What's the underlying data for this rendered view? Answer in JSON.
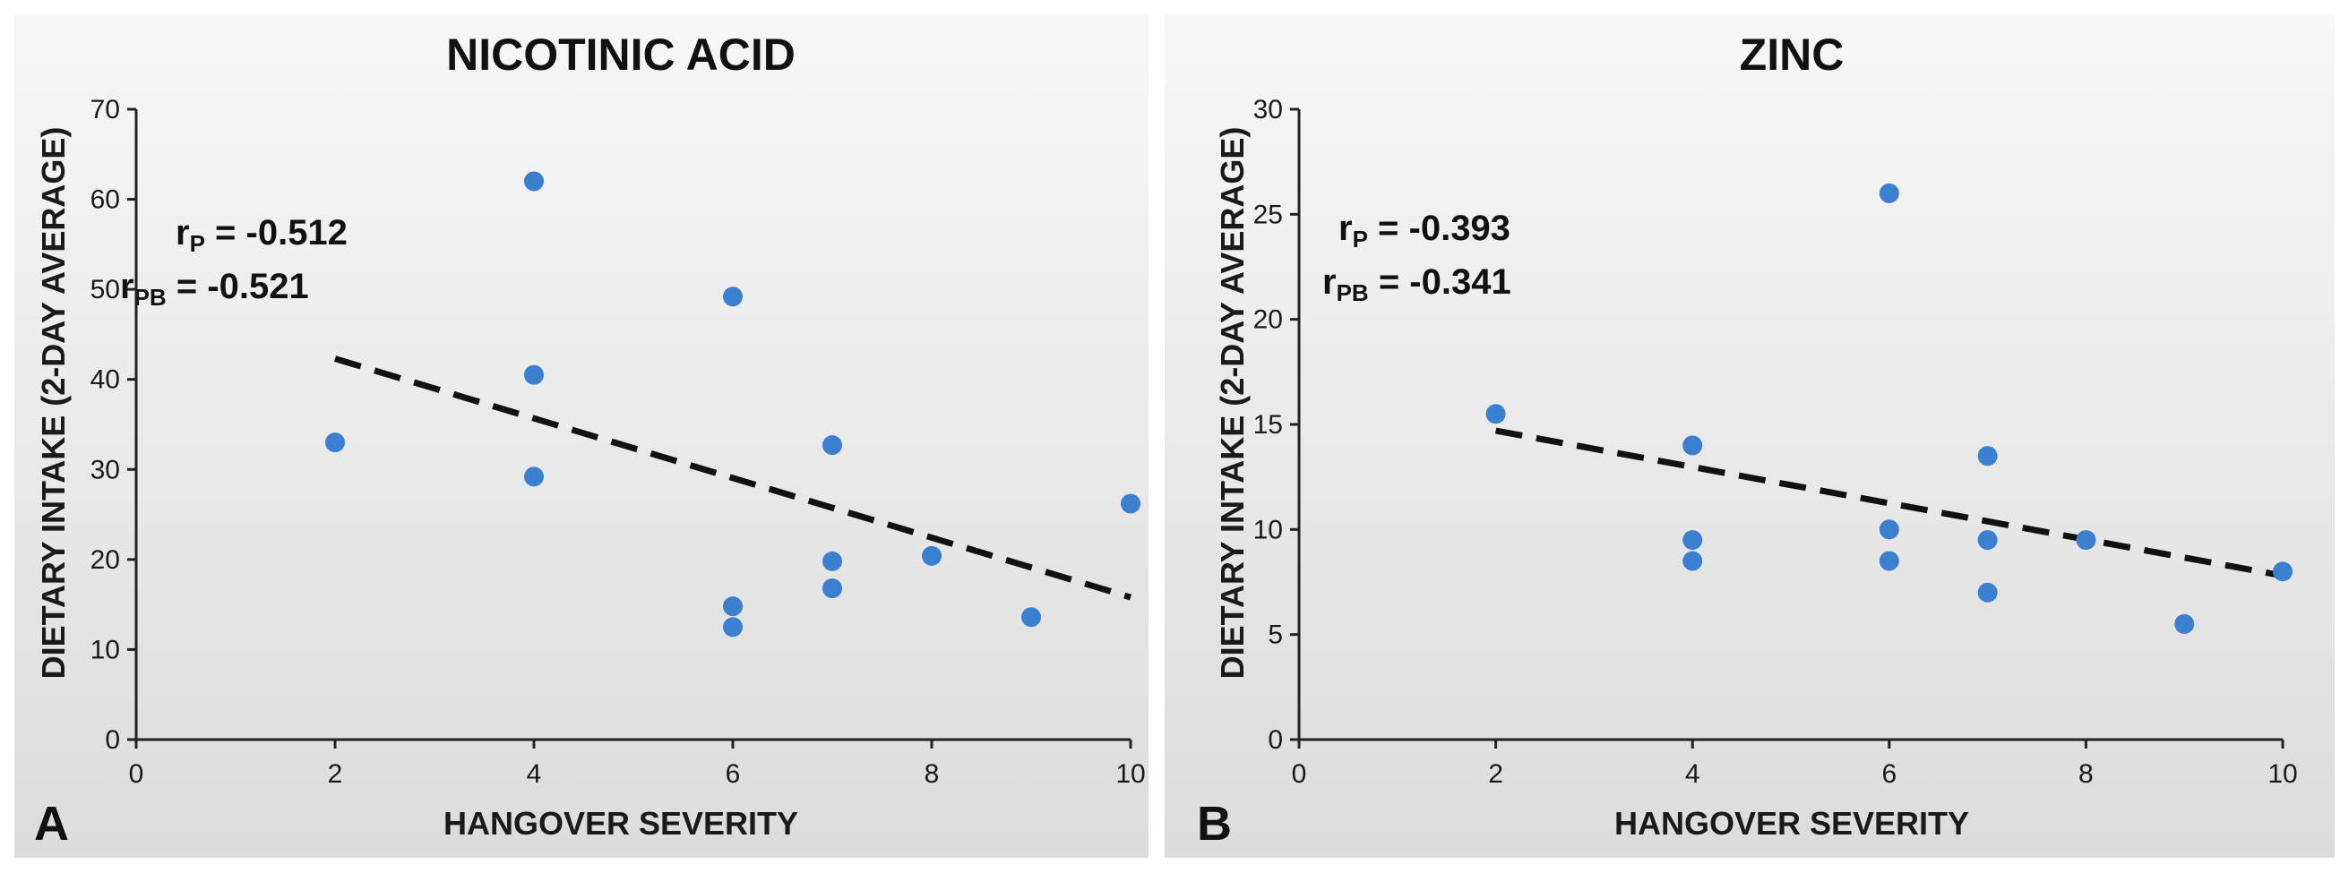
{
  "chart_data": [
    {
      "type": "scatter",
      "panel_label": "A",
      "title": "NICOTINIC ACID",
      "xlabel": "HANGOVER SEVERITY",
      "ylabel": "DIETARY INTAKE (2-DAY AVERAGE)",
      "xlim": [
        0,
        10
      ],
      "ylim": [
        0,
        70
      ],
      "x_ticks": [
        0,
        2,
        4,
        6,
        8,
        10
      ],
      "y_ticks": [
        0,
        10,
        20,
        30,
        40,
        50,
        60,
        70
      ],
      "x_tick_labels": [
        "0",
        "2",
        "4",
        "6",
        "8",
        "10"
      ],
      "y_tick_labels": [
        "0",
        "10",
        "20",
        "30",
        "40",
        "50",
        "60",
        "70"
      ],
      "grid": false,
      "legend": "none",
      "points": [
        {
          "x": 2,
          "y": 33
        },
        {
          "x": 4,
          "y": 62
        },
        {
          "x": 4,
          "y": 40.5
        },
        {
          "x": 4,
          "y": 29.2
        },
        {
          "x": 6,
          "y": 49.2
        },
        {
          "x": 6,
          "y": 14.8
        },
        {
          "x": 6,
          "y": 12.5
        },
        {
          "x": 7,
          "y": 32.7
        },
        {
          "x": 7,
          "y": 19.8
        },
        {
          "x": 7,
          "y": 16.8
        },
        {
          "x": 8,
          "y": 20.4
        },
        {
          "x": 9,
          "y": 13.6
        },
        {
          "x": 10,
          "y": 26.2
        }
      ],
      "trendline": {
        "style": "dashed",
        "x": [
          2,
          10
        ],
        "y": [
          42.3,
          15.8
        ]
      },
      "annotations": {
        "r_p_label": "r",
        "r_p_sub": "P",
        "r_p_value": " = -0.512",
        "r_pb_label": "r",
        "r_pb_sub": "PB",
        "r_pb_value": " = -0.521"
      },
      "point_color": "#3a7fd0",
      "line_color": "#111111"
    },
    {
      "type": "scatter",
      "panel_label": "B",
      "title": "ZINC",
      "xlabel": "HANGOVER SEVERITY",
      "ylabel": "DIETARY INTAKE (2-DAY AVERAGE)",
      "xlim": [
        0,
        10
      ],
      "ylim": [
        0,
        30
      ],
      "x_ticks": [
        0,
        2,
        4,
        6,
        8,
        10
      ],
      "y_ticks": [
        0,
        5,
        10,
        15,
        20,
        25,
        30
      ],
      "x_tick_labels": [
        "0",
        "2",
        "4",
        "6",
        "8",
        "10"
      ],
      "y_tick_labels": [
        "0",
        "5",
        "10",
        "15",
        "20",
        "25",
        "30"
      ],
      "grid": false,
      "legend": "none",
      "points": [
        {
          "x": 2,
          "y": 15.5
        },
        {
          "x": 4,
          "y": 14
        },
        {
          "x": 4,
          "y": 9.5
        },
        {
          "x": 4,
          "y": 8.5
        },
        {
          "x": 6,
          "y": 26
        },
        {
          "x": 6,
          "y": 10
        },
        {
          "x": 6,
          "y": 8.5
        },
        {
          "x": 7,
          "y": 13.5
        },
        {
          "x": 7,
          "y": 9.5
        },
        {
          "x": 7,
          "y": 7
        },
        {
          "x": 8,
          "y": 9.5
        },
        {
          "x": 9,
          "y": 5.5
        },
        {
          "x": 10,
          "y": 8
        }
      ],
      "trendline": {
        "style": "dashed",
        "x": [
          2,
          10
        ],
        "y": [
          14.7,
          7.8
        ]
      },
      "annotations": {
        "r_p_label": "r",
        "r_p_sub": "P",
        "r_p_value": " = -0.393",
        "r_pb_label": "r",
        "r_pb_sub": "PB",
        "r_pb_value": " = -0.341"
      },
      "point_color": "#3a7fd0",
      "line_color": "#111111"
    }
  ]
}
